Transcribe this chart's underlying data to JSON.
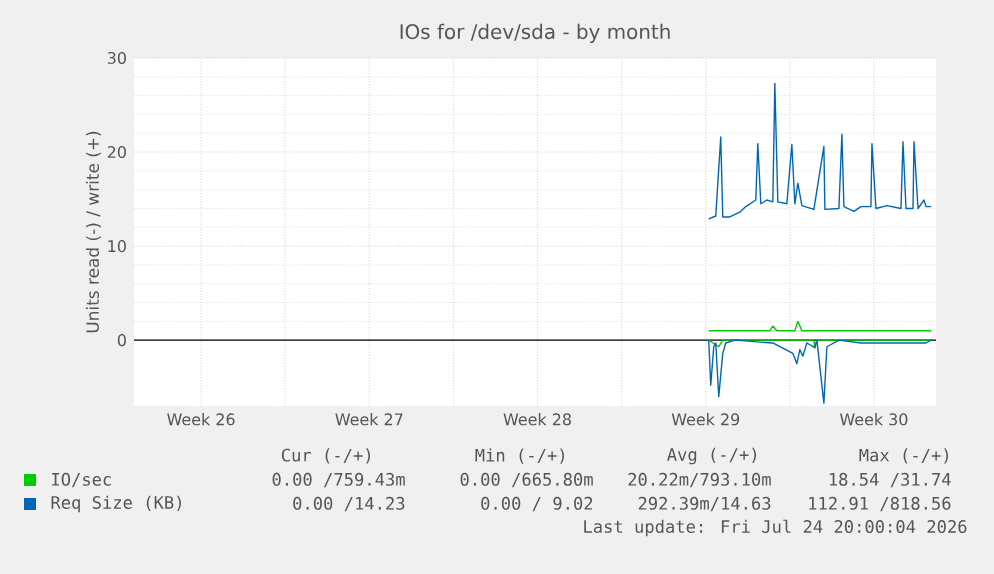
{
  "chart_data": {
    "type": "line",
    "title": "IOs for /dev/sda - by month",
    "ylabel": "Units read (-) / write (+)",
    "xlim": [
      "2026-06-22T17:00",
      "2026-07-26T02:00"
    ],
    "ylim": [
      -7,
      30
    ],
    "xticks": [
      {
        "value": "2026-06-25T12:00",
        "label": "Week 26"
      },
      {
        "value": "2026-06-29",
        "label": null
      },
      {
        "value": "2026-07-02T12:00",
        "label": "Week 27"
      },
      {
        "value": "2026-07-06",
        "label": null
      },
      {
        "value": "2026-07-09T12:00",
        "label": "Week 28"
      },
      {
        "value": "2026-07-13",
        "label": null
      },
      {
        "value": "2026-07-16T12:00",
        "label": "Week 29"
      },
      {
        "value": "2026-07-20",
        "label": null
      },
      {
        "value": "2026-07-23T12:00",
        "label": "Week 30"
      }
    ],
    "yticks": [
      0,
      10,
      20,
      30
    ],
    "grid": true,
    "legend": "bottom",
    "marker": "none",
    "line_style": "solid",
    "ref_lines": [
      {
        "axis": "y",
        "value": 0,
        "color": "#000000"
      }
    ],
    "series": [
      {
        "name": "IO/sec",
        "color": "#00cc00",
        "x": [
          "2026-07-16T15:00",
          "2026-07-19T04:00",
          "2026-07-19T07:00",
          "2026-07-19T11:00",
          "2026-07-20T05:00",
          "2026-07-20T08:00",
          "2026-07-20T12:00",
          "2026-07-25T21:00"
        ],
        "values": [
          1,
          1,
          1.5,
          1,
          1,
          2,
          1,
          1
        ]
      },
      {
        "color": "#00cc00",
        "x": [
          "2026-07-16T15:00",
          "2026-07-17T01:00",
          "2026-07-17T05:00",
          "2026-07-21T00:00",
          "2026-07-21T01:00",
          "2026-07-21T03:00",
          "2026-07-25T21:00"
        ],
        "values": [
          0,
          -0.7,
          0,
          0,
          -0.8,
          0,
          0
        ]
      },
      {
        "name": "Req Size (KB)",
        "color": "#0066b3",
        "x": [
          "2026-07-16T15:00",
          "2026-07-16T22:00",
          "2026-07-17T03:00",
          "2026-07-17T05:00",
          "2026-07-17T12:00",
          "2026-07-17T22:00",
          "2026-07-18T04:00",
          "2026-07-18T14:00",
          "2026-07-18T16:00",
          "2026-07-18T19:00",
          "2026-07-19T01:00",
          "2026-07-19T07:00",
          "2026-07-19T09:00",
          "2026-07-19T12:00",
          "2026-07-19T21:00",
          "2026-07-20T02:00",
          "2026-07-20T05:00",
          "2026-07-20T08:00",
          "2026-07-20T12:00",
          "2026-07-21T00:00",
          "2026-07-21T10:00",
          "2026-07-21T11:00",
          "2026-07-22T01:00",
          "2026-07-22T04:00",
          "2026-07-22T06:00",
          "2026-07-22T16:00",
          "2026-07-22T23:00",
          "2026-07-23T09:00",
          "2026-07-23T10:00",
          "2026-07-23T14:00",
          "2026-07-24T01:00",
          "2026-07-24T15:00",
          "2026-07-24T17:00",
          "2026-07-24T20:00",
          "2026-07-25T03:00",
          "2026-07-25T04:00",
          "2026-07-25T08:00",
          "2026-07-25T14:00",
          "2026-07-25T16:00",
          "2026-07-25T21:00"
        ],
        "values": [
          12.9,
          13.2,
          21.6,
          13.1,
          13.1,
          13.6,
          14.2,
          14.9,
          20.9,
          14.5,
          14.9,
          14.7,
          27.3,
          14.7,
          14.5,
          20.8,
          14.5,
          16.7,
          14.3,
          13.9,
          20.6,
          13.9,
          14.0,
          21.9,
          14.2,
          13.7,
          14.2,
          14.2,
          20.9,
          14.0,
          14.3,
          14.0,
          21.1,
          14.0,
          14.0,
          21.1,
          14.0,
          14.9,
          14.2,
          14.2
        ]
      },
      {
        "color": "#0066b3",
        "x": [
          "2026-07-16T15:00",
          "2026-07-16T17:00",
          "2026-07-16T20:00",
          "2026-07-16T22:00",
          "2026-07-17T01:00",
          "2026-07-17T05:00",
          "2026-07-17T08:00",
          "2026-07-17T17:00",
          "2026-07-19T07:00",
          "2026-07-20T03:00",
          "2026-07-20T07:00",
          "2026-07-20T10:00",
          "2026-07-20T13:00",
          "2026-07-20T17:00",
          "2026-07-21T01:00",
          "2026-07-21T03:00",
          "2026-07-21T10:00",
          "2026-07-21T13:00",
          "2026-07-22T01:00",
          "2026-07-22T23:00",
          "2026-07-25T16:00",
          "2026-07-25T21:00"
        ],
        "values": [
          0,
          -4.8,
          -0.7,
          -0.3,
          -6.0,
          -1.4,
          -0.3,
          0,
          -0.3,
          -1.4,
          -2.5,
          -1.0,
          -1.7,
          -0.3,
          -0.8,
          0,
          -6.7,
          -0.7,
          0,
          -0.3,
          -0.3,
          0
        ]
      }
    ],
    "annotations": [
      "Cur (-/+)",
      "Min (-/+)",
      "Avg (-/+)",
      "Max (-/+)",
      "0.00 /759.43m",
      "0.00 /665.80m",
      "20.22m/793.10m",
      "18.54 /31.74",
      "0.00 /14.23",
      "0.00 / 9.02",
      "292.39m/14.63",
      "112.91 /818.56",
      "Last update: Fri Jul 24 20:00:04 2026"
    ]
  }
}
